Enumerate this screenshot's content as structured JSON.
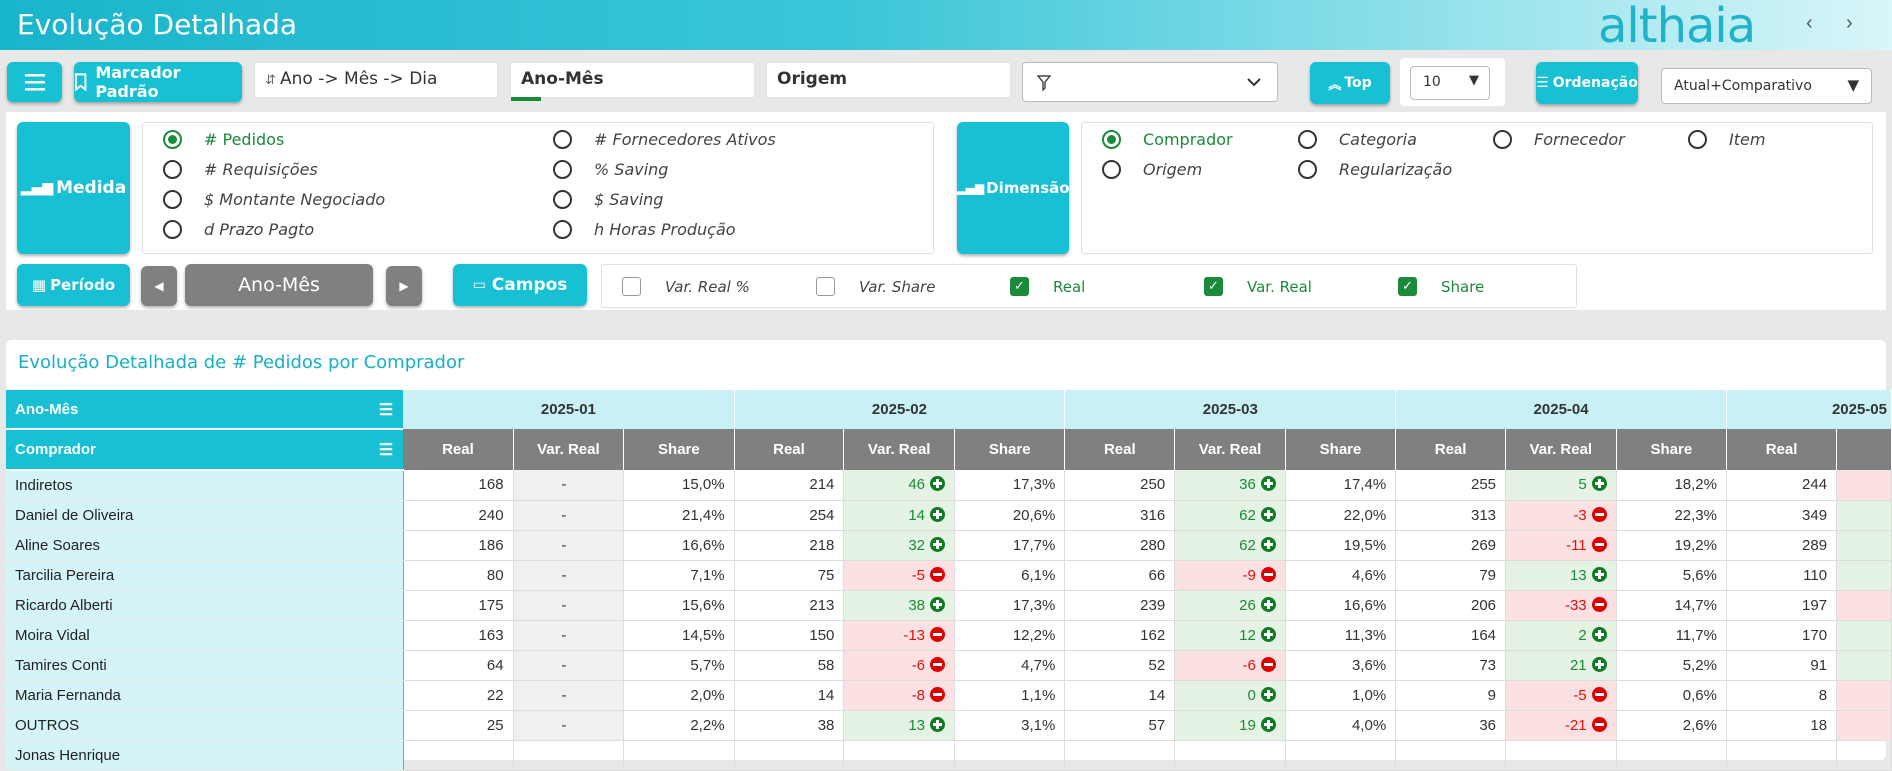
{
  "header": {
    "title": "Evolução Detalhada",
    "logo": "althaia",
    "prev": "‹",
    "next": "›"
  },
  "toolbar": {
    "menu_icon": "hamburger-icon",
    "bookmark_label": "Marcador Padrão",
    "hierarchy_value": "Ano -> Mês -> Dia",
    "period_field": "Ano-Mês",
    "origin_field": "Origem",
    "top_label": "Top",
    "top_value": "10",
    "order_label": "Ordenação",
    "order_value": "Atual+Comparativo"
  },
  "measure": {
    "label": "Medida",
    "options": [
      "# Pedidos",
      "# Requisições",
      "$ Montante Negociado",
      "d Prazo Pagto",
      "# Fornecedores Ativos",
      "% Saving",
      "$ Saving",
      "h Horas Produção"
    ],
    "selected": "# Pedidos"
  },
  "dimension": {
    "label": "Dimensão",
    "options": [
      "Comprador",
      "Categoria",
      "Fornecedor",
      "Item",
      "Origem",
      "Regularização"
    ],
    "selected": "Comprador"
  },
  "period": {
    "label": "Período",
    "value": "Ano-Mês"
  },
  "fields": {
    "label": "Campos",
    "options": [
      {
        "label": "Var. Real %",
        "checked": false
      },
      {
        "label": "Var. Share",
        "checked": false
      },
      {
        "label": "Real",
        "checked": true
      },
      {
        "label": "Var. Real",
        "checked": true
      },
      {
        "label": "Share",
        "checked": true
      }
    ]
  },
  "table": {
    "title": "Evolução Detalhada de # Pedidos por Comprador",
    "row_header_1": "Ano-Mês",
    "row_header_2": "Comprador",
    "months": [
      "2025-01",
      "2025-02",
      "2025-03",
      "2025-04",
      "2025-05"
    ],
    "subcols": [
      "Real",
      "Var. Real",
      "Share"
    ],
    "rows": [
      {
        "name": "Indiretos",
        "cells": [
          [
            "168",
            "-",
            "15,0%"
          ],
          [
            "214",
            "46",
            "17,3%"
          ],
          [
            "250",
            "36",
            "17,4%"
          ],
          [
            "255",
            "5",
            "18,2%"
          ],
          [
            "244"
          ]
        ]
      },
      {
        "name": "Daniel de Oliveira",
        "cells": [
          [
            "240",
            "-",
            "21,4%"
          ],
          [
            "254",
            "14",
            "20,6%"
          ],
          [
            "316",
            "62",
            "22,0%"
          ],
          [
            "313",
            "-3",
            "22,3%"
          ],
          [
            "349"
          ]
        ]
      },
      {
        "name": "Aline Soares",
        "cells": [
          [
            "186",
            "-",
            "16,6%"
          ],
          [
            "218",
            "32",
            "17,7%"
          ],
          [
            "280",
            "62",
            "19,5%"
          ],
          [
            "269",
            "-11",
            "19,2%"
          ],
          [
            "289"
          ]
        ]
      },
      {
        "name": "Tarcilia Pereira",
        "cells": [
          [
            "80",
            "-",
            "7,1%"
          ],
          [
            "75",
            "-5",
            "6,1%"
          ],
          [
            "66",
            "-9",
            "4,6%"
          ],
          [
            "79",
            "13",
            "5,6%"
          ],
          [
            "110"
          ]
        ]
      },
      {
        "name": "Ricardo Alberti",
        "cells": [
          [
            "175",
            "-",
            "15,6%"
          ],
          [
            "213",
            "38",
            "17,3%"
          ],
          [
            "239",
            "26",
            "16,6%"
          ],
          [
            "206",
            "-33",
            "14,7%"
          ],
          [
            "197"
          ]
        ]
      },
      {
        "name": "Moira Vidal",
        "cells": [
          [
            "163",
            "-",
            "14,5%"
          ],
          [
            "150",
            "-13",
            "12,2%"
          ],
          [
            "162",
            "12",
            "11,3%"
          ],
          [
            "164",
            "2",
            "11,7%"
          ],
          [
            "170"
          ]
        ]
      },
      {
        "name": "Tamires Conti",
        "cells": [
          [
            "64",
            "-",
            "5,7%"
          ],
          [
            "58",
            "-6",
            "4,7%"
          ],
          [
            "52",
            "-6",
            "3,6%"
          ],
          [
            "73",
            "21",
            "5,2%"
          ],
          [
            "91"
          ]
        ]
      },
      {
        "name": "Maria Fernanda",
        "cells": [
          [
            "22",
            "-",
            "2,0%"
          ],
          [
            "14",
            "-8",
            "1,1%"
          ],
          [
            "14",
            "0",
            "1,0%"
          ],
          [
            "9",
            "-5",
            "0,6%"
          ],
          [
            "8"
          ]
        ]
      },
      {
        "name": "OUTROS",
        "cells": [
          [
            "25",
            "-",
            "2,2%"
          ],
          [
            "38",
            "13",
            "3,1%"
          ],
          [
            "57",
            "19",
            "4,0%"
          ],
          [
            "36",
            "-21",
            "2,6%"
          ],
          [
            "18"
          ]
        ]
      },
      {
        "name": "Jonas Henrique",
        "cells": [
          [
            "",
            "",
            ""
          ],
          [
            "",
            "",
            ""
          ],
          [
            "",
            "",
            ""
          ],
          [
            "",
            "",
            ""
          ],
          [
            ""
          ]
        ]
      }
    ]
  }
}
